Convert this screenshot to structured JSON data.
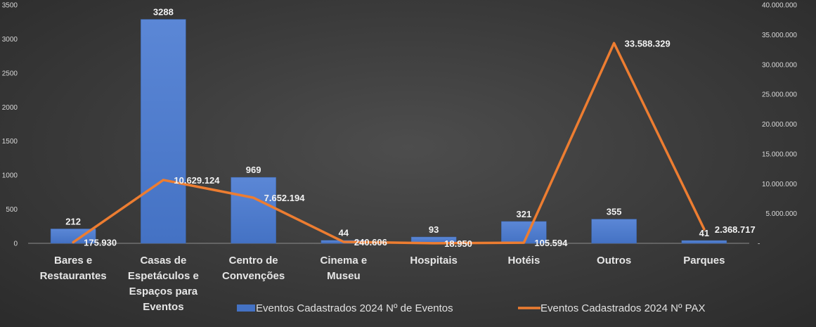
{
  "chart_data": {
    "type": "bar",
    "title": "",
    "categories": [
      [
        "Bares e",
        "Restaurantes"
      ],
      [
        "Casas de",
        "Espetáculos e",
        "Espaços para",
        "Eventos"
      ],
      [
        "Centro de",
        "Convenções"
      ],
      [
        "Cinema e",
        "Museu"
      ],
      [
        "Hospitais"
      ],
      [
        "Hotéis"
      ],
      [
        "Outros"
      ],
      [
        "Parques"
      ]
    ],
    "series": [
      {
        "name": "Eventos Cadastrados 2024 Nº de Eventos",
        "type": "bar",
        "axis": "left",
        "color": "#4472c4",
        "values": [
          212,
          3288,
          969,
          44,
          93,
          321,
          355,
          41
        ],
        "labels": [
          "212",
          "3288",
          "969",
          "44",
          "93",
          "321",
          "355",
          "41"
        ]
      },
      {
        "name": "Eventos Cadastrados 2024 Nº PAX",
        "type": "line",
        "axis": "right",
        "color": "#ed7d31",
        "values": [
          175930,
          10629124,
          7652194,
          240606,
          18950,
          105594,
          33588329,
          2368717
        ],
        "labels": [
          "175.930",
          "10.629.124",
          "7.652.194",
          "240.606",
          "18.950",
          "105.594",
          "33.588.329",
          "2.368.717"
        ]
      }
    ],
    "y_left": {
      "min": 0,
      "max": 3500,
      "ticks": [
        "0",
        "500",
        "1000",
        "1500",
        "2000",
        "2500",
        "3000",
        "3500"
      ]
    },
    "y_right": {
      "min": 0,
      "max": 40000000,
      "ticks": [
        "-",
        "5.000.000",
        "10.000.000",
        "15.000.000",
        "20.000.000",
        "25.000.000",
        "30.000.000",
        "35.000.000",
        "40.000.000"
      ]
    },
    "grid": false,
    "legend_position": "bottom"
  }
}
